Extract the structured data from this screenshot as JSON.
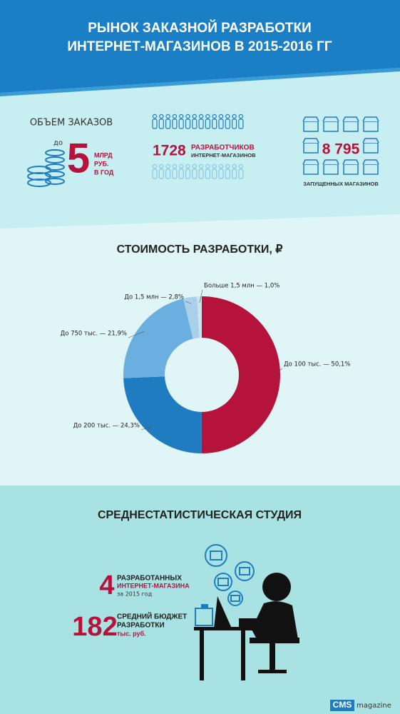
{
  "header": {
    "title_lines": [
      "РЫНОК ЗАКАЗНОЙ РАЗРАБОТКИ",
      "ИНТЕРНЕТ-МАГАЗИНОВ В 2015-2016 ГГ"
    ]
  },
  "stats": {
    "orders": {
      "title": "ОБЪЕМ ЗАКАЗОВ",
      "prefix": "до",
      "number": "5",
      "unit_lines": [
        "МЛРД",
        "РУБ.",
        "В ГОД"
      ]
    },
    "developers": {
      "number": "1728",
      "label_lines": [
        "РАЗРАБОТЧИКОВ",
        "ИНТЕРНЕТ-МАГАЗИНОВ"
      ]
    },
    "shops": {
      "number": "8 795",
      "label": "ЗАПУЩЕННЫХ МАГАЗИНОВ"
    }
  },
  "chart_data": {
    "type": "pie",
    "donut": true,
    "title": "СТОИМОСТЬ РАЗРАБОТКИ, ₽",
    "categories": [
      "До 100 тыс.",
      "До 200 тыс.",
      "До 750 тыс.",
      "До 1,5 млн",
      "Больше 1,5 млн"
    ],
    "values": [
      50.1,
      24.3,
      21.9,
      2.8,
      1.0
    ],
    "value_labels": [
      "До 100 тыс. — 50,1%",
      "До 200 тыс. — 24,3%",
      "До 750 тыс. — 21,9%",
      "До 1,5 млн — 2,8%",
      "Больше 1,5 млн — 1,0%"
    ],
    "colors": [
      "#b5123c",
      "#1f7cc1",
      "#6aafe0",
      "#a9cfe9",
      "#cfe3ee"
    ]
  },
  "studio": {
    "title": "СРЕДНЕСТАТИСТИЧЕСКАЯ СТУДИЯ",
    "shops_number": "4",
    "shops_lines": [
      "РАЗРАБОТАННЫХ",
      "ИНТЕРНЕТ-МАГАЗИНА",
      "за 2015 год"
    ],
    "budget_number": "182",
    "budget_lines": [
      "СРЕДНИЙ БЮДЖЕТ",
      "РАЗРАБОТКИ",
      "тыс. руб."
    ]
  },
  "footer": {
    "brand": "CMS",
    "suffix": "magazine"
  }
}
